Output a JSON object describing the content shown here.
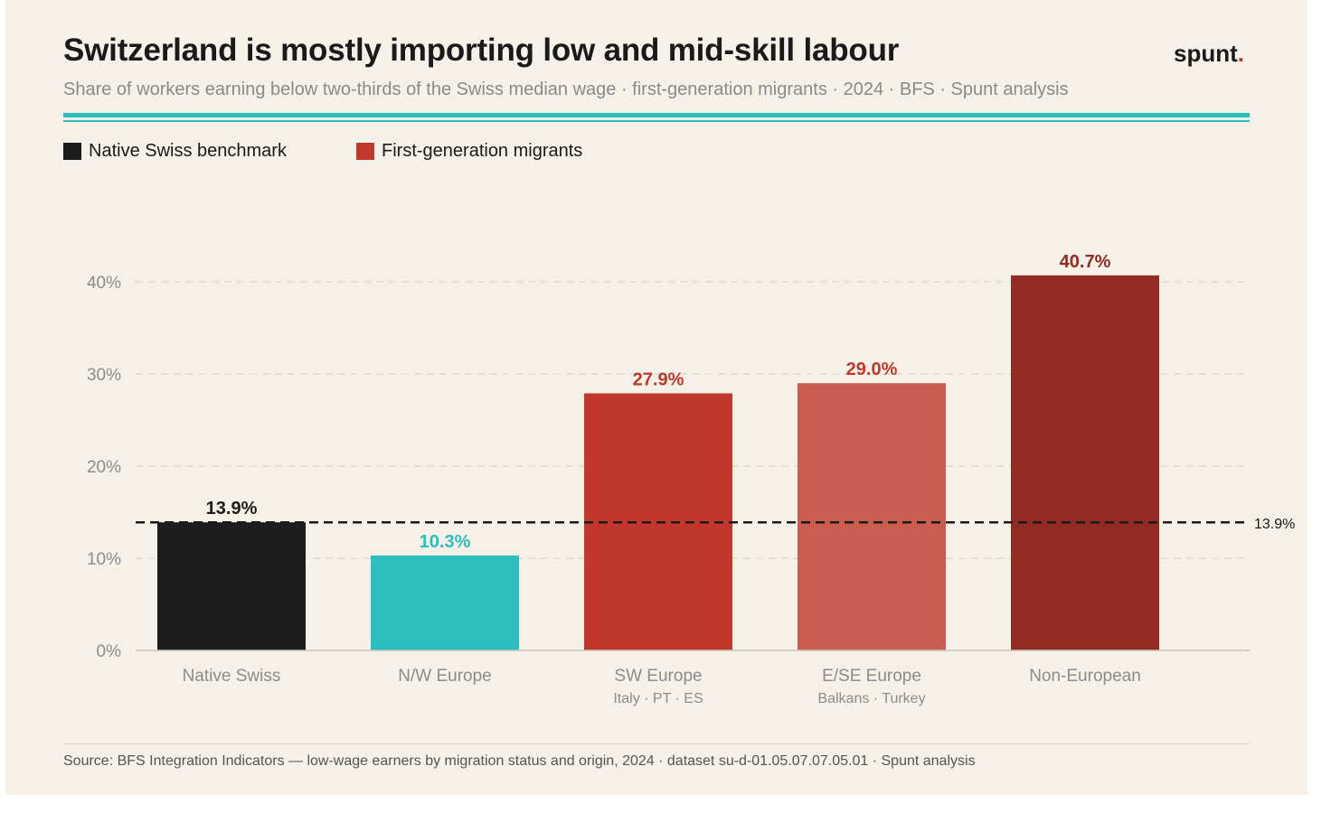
{
  "header": {
    "title": "Switzerland is mostly importing low and mid-skill labour",
    "subtitle": "Share of workers earning below two-thirds of the Swiss median wage · first-generation migrants · 2024 · BFS · Spunt analysis",
    "brand_text": "spunt",
    "brand_dot": "."
  },
  "legend": [
    {
      "label": "Native Swiss benchmark",
      "color": "#1c1c1c"
    },
    {
      "label": "First-generation migrants",
      "color": "#c0392b"
    }
  ],
  "chart_data": {
    "type": "bar",
    "categories": [
      "Native Swiss",
      "N/W Europe",
      "SW Europe",
      "E/SE Europe",
      "Non-European"
    ],
    "sublabels": [
      "",
      "",
      "Italy · PT · ES",
      "Balkans · Turkey",
      ""
    ],
    "values": [
      13.9,
      10.3,
      27.9,
      29.0,
      40.7
    ],
    "value_labels": [
      "13.9%",
      "10.3%",
      "27.9%",
      "29.0%",
      "40.7%"
    ],
    "bar_colors": [
      "#1c1c1c",
      "#2bbfbf",
      "#c0372b",
      "#cb5c50",
      "#922b22"
    ],
    "label_colors": [
      "#1c1c1c",
      "#2bbfbf",
      "#c0372b",
      "#c0372b",
      "#922b22"
    ],
    "yticks": [
      0,
      10,
      20,
      30,
      40
    ],
    "ytick_labels": [
      "0%",
      "10%",
      "20%",
      "30%",
      "40%"
    ],
    "ylim": [
      0,
      45
    ],
    "reference_line": {
      "value": 13.9,
      "label": "13.9%"
    },
    "grid": true,
    "legend_position": "top-left"
  },
  "footer": {
    "source": "Source: BFS Integration Indicators — low-wage earners by migration status and origin, 2024 · dataset su-d-01.05.07.07.05.01 · Spunt analysis"
  }
}
